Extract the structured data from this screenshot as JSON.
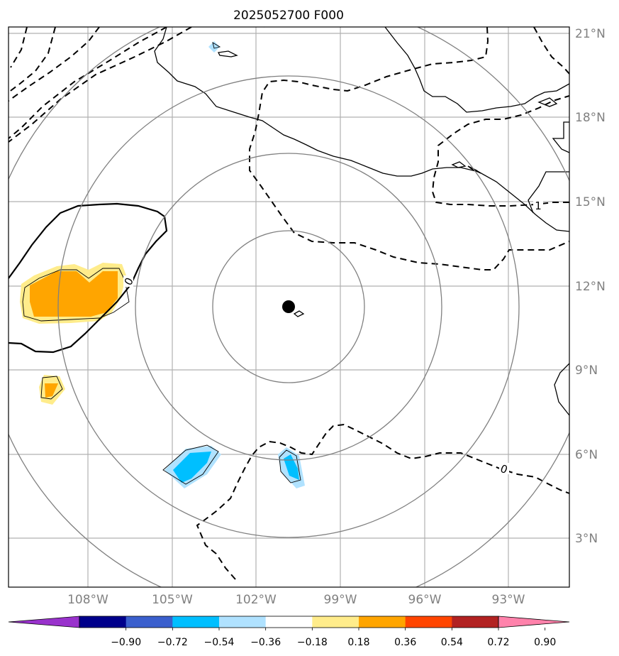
{
  "title": "2025052700 F000",
  "map": {
    "lat_ticks": [
      "21°N",
      "18°N",
      "15°N",
      "12°N",
      "9°N",
      "6°N",
      "3°N"
    ],
    "lon_ticks": [
      "108°W",
      "105°W",
      "102°W",
      "99°W",
      "96°W",
      "93°W"
    ],
    "extent": {
      "lon": [
        -110.8,
        -90.7
      ],
      "lat": [
        1.3,
        21.3
      ]
    },
    "center_marker": {
      "lon": -100.8,
      "lat": 11.2
    },
    "range_rings": 4,
    "contour_labels": [
      "0",
      "1",
      "0"
    ]
  },
  "colorbar": {
    "tick_labels": [
      "−0.90",
      "−0.72",
      "−0.54",
      "−0.36",
      "−0.18",
      "0.18",
      "0.36",
      "0.54",
      "0.72",
      "0.90"
    ],
    "colors": [
      "#9932cc",
      "#00008b",
      "#3a5fcd",
      "#00bfff",
      "#b0e2ff",
      "#ffffff",
      "#ffec8b",
      "#ffa500",
      "#ff4500",
      "#b22222",
      "#ff82ab"
    ]
  },
  "style": {
    "grid_color": "#b0b0b0",
    "ring_color": "#808080",
    "coast_color": "#000000",
    "fill_light_yellow": "#ffec8b",
    "fill_orange": "#ffa500",
    "fill_light_blue": "#b0e2ff",
    "fill_deep_sky_blue": "#00bfff"
  }
}
